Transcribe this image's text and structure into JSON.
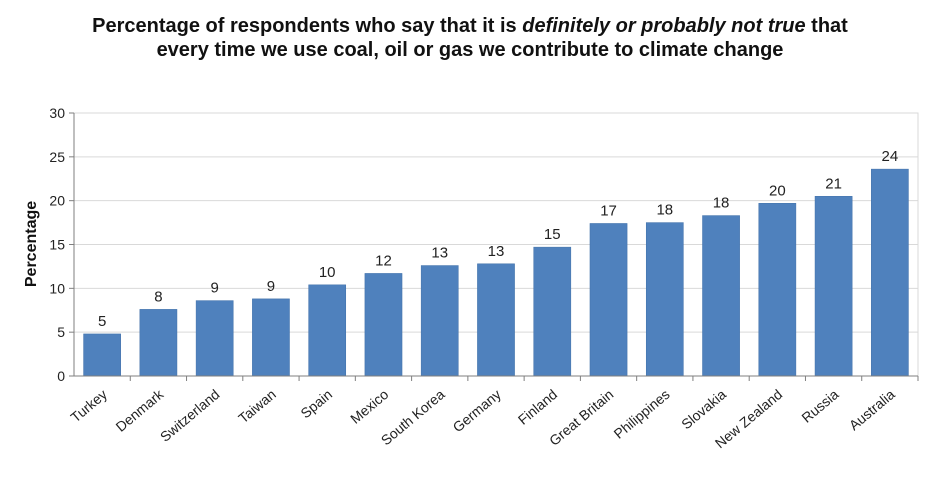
{
  "chart_data": {
    "type": "bar",
    "title_parts": [
      {
        "text": "Percentage of respondents who say that it is ",
        "italic": false
      },
      {
        "text": "definitely or probably not",
        "italic": true
      },
      {
        "text": " ",
        "italic": false
      },
      {
        "text": "true",
        "italic": true
      },
      {
        "text": " that every time we use coal, oil or gas we contribute to climate change",
        "italic": false
      }
    ],
    "xlabel": "",
    "ylabel": "Percentage",
    "ylim": [
      0,
      30
    ],
    "yticks": [
      0,
      5,
      10,
      15,
      20,
      25,
      30
    ],
    "grid": true,
    "legend": "none",
    "bar_color": "#4f81bd",
    "categories": [
      "Turkey",
      "Denmark",
      "Switzerland",
      "Taiwan",
      "Spain",
      "Mexico",
      "South Korea",
      "Germany",
      "Finland",
      "Great Britain",
      "Philippines",
      "Slovakia",
      "New Zealand",
      "Russia",
      "Australia"
    ],
    "values": [
      4.8,
      7.6,
      8.6,
      8.8,
      10.4,
      11.7,
      12.6,
      12.8,
      14.7,
      17.4,
      17.5,
      18.3,
      19.7,
      20.5,
      23.6
    ],
    "data_labels": [
      "5",
      "8",
      "9",
      "9",
      "10",
      "12",
      "13",
      "13",
      "15",
      "17",
      "18",
      "18",
      "20",
      "21",
      "24"
    ]
  }
}
